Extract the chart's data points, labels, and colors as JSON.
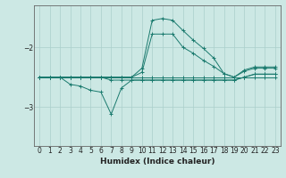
{
  "xlabel": "Humidex (Indice chaleur)",
  "bg_color": "#cce8e4",
  "grid_color": "#aacfcb",
  "line_color": "#1a7a6e",
  "xlim": [
    -0.5,
    23.5
  ],
  "ylim": [
    -3.65,
    -1.3
  ],
  "yticks": [
    -3,
    -2
  ],
  "xticks": [
    0,
    1,
    2,
    3,
    4,
    5,
    6,
    7,
    8,
    9,
    10,
    11,
    12,
    13,
    14,
    15,
    16,
    17,
    18,
    19,
    20,
    21,
    22,
    23
  ],
  "series": {
    "line1": {
      "x": [
        0,
        1,
        2,
        3,
        4,
        5,
        6,
        7,
        8,
        9,
        10,
        11,
        12,
        13,
        14,
        15,
        16,
        17,
        18,
        19,
        20,
        21,
        22,
        23
      ],
      "y": [
        -2.5,
        -2.5,
        -2.5,
        -2.5,
        -2.5,
        -2.5,
        -2.5,
        -2.5,
        -2.5,
        -2.5,
        -2.5,
        -2.5,
        -2.5,
        -2.5,
        -2.5,
        -2.5,
        -2.5,
        -2.5,
        -2.5,
        -2.5,
        -2.5,
        -2.5,
        -2.5,
        -2.5
      ]
    },
    "line2": {
      "x": [
        0,
        1,
        2,
        3,
        4,
        5,
        6,
        7,
        8,
        9,
        10,
        11,
        12,
        13,
        14,
        15,
        16,
        17,
        18,
        19,
        20,
        21,
        22,
        23
      ],
      "y": [
        -2.5,
        -2.5,
        -2.5,
        -2.5,
        -2.5,
        -2.5,
        -2.5,
        -2.5,
        -2.5,
        -2.5,
        -2.35,
        -1.55,
        -1.52,
        -1.55,
        -1.72,
        -1.88,
        -2.02,
        -2.18,
        -2.44,
        -2.5,
        -2.38,
        -2.33,
        -2.33,
        -2.33
      ]
    },
    "line3": {
      "x": [
        0,
        1,
        2,
        3,
        4,
        5,
        6,
        7,
        8,
        9,
        10,
        11,
        12,
        13,
        14,
        15,
        16,
        17,
        18,
        19,
        20,
        21,
        22,
        23
      ],
      "y": [
        -2.5,
        -2.5,
        -2.5,
        -2.5,
        -2.5,
        -2.5,
        -2.5,
        -2.5,
        -2.5,
        -2.5,
        -2.42,
        -1.78,
        -1.78,
        -1.78,
        -2.0,
        -2.1,
        -2.22,
        -2.32,
        -2.44,
        -2.5,
        -2.4,
        -2.35,
        -2.35,
        -2.35
      ]
    },
    "line4": {
      "x": [
        0,
        1,
        2,
        3,
        4,
        5,
        6,
        7,
        8,
        9,
        10,
        11,
        12,
        13,
        14,
        15,
        16,
        17,
        18,
        19,
        20,
        21,
        22,
        23
      ],
      "y": [
        -2.5,
        -2.5,
        -2.5,
        -2.5,
        -2.5,
        -2.5,
        -2.5,
        -2.55,
        -2.55,
        -2.55,
        -2.55,
        -2.55,
        -2.55,
        -2.55,
        -2.55,
        -2.55,
        -2.55,
        -2.55,
        -2.55,
        -2.55,
        -2.5,
        -2.45,
        -2.45,
        -2.45
      ]
    },
    "line5": {
      "x": [
        0,
        1,
        2,
        3,
        4,
        5,
        6,
        7,
        8,
        9,
        10,
        11,
        12,
        13,
        14,
        15,
        16,
        17,
        18,
        19,
        20,
        21,
        22,
        23
      ],
      "y": [
        -2.5,
        -2.5,
        -2.5,
        -2.62,
        -2.65,
        -2.72,
        -2.75,
        -3.12,
        -2.68,
        -2.55,
        -2.55,
        -2.55,
        -2.55,
        -2.55,
        -2.55,
        -2.55,
        -2.55,
        -2.55,
        -2.55,
        -2.55,
        -2.5,
        -2.45,
        -2.45,
        -2.45
      ]
    }
  }
}
